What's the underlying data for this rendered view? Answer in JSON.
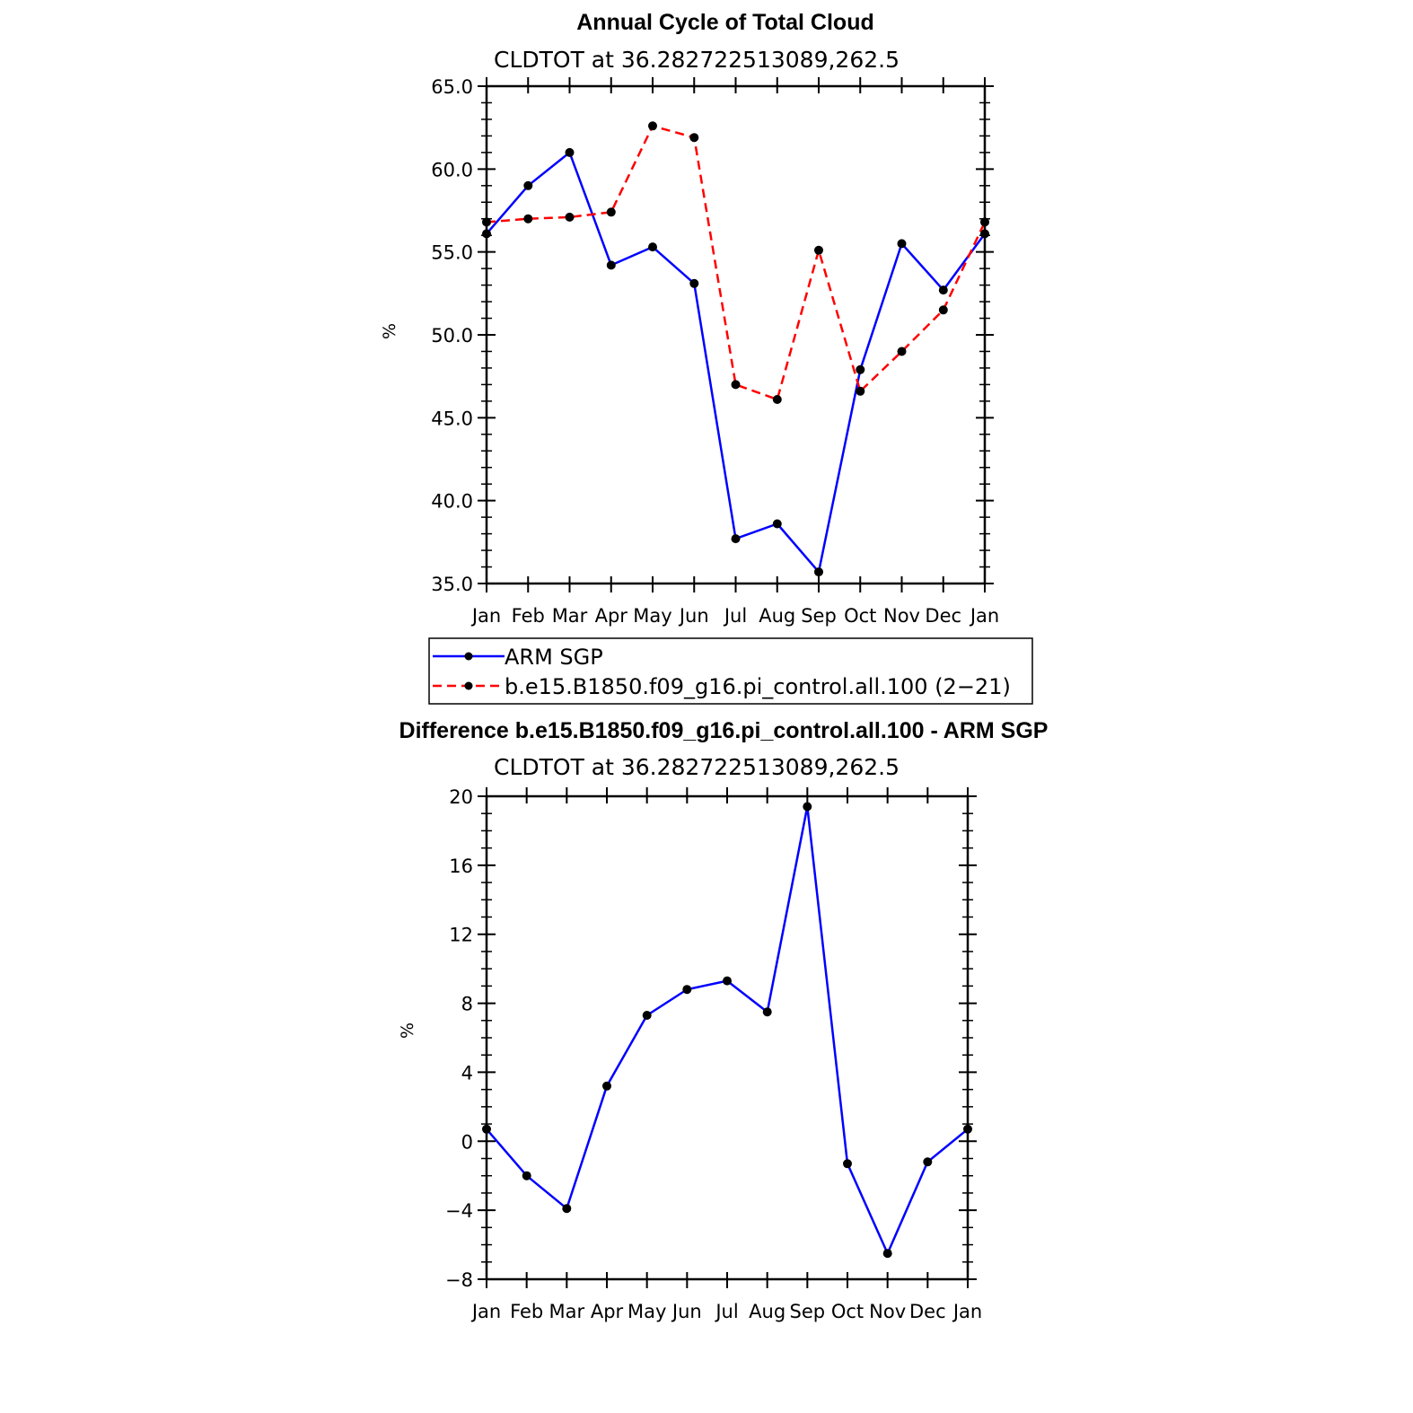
{
  "chart_data": [
    {
      "type": "line",
      "title": "Annual Cycle of Total Cloud",
      "subtitle": "CLDTOT at 36.282722513089,262.5",
      "xlabel": "",
      "ylabel": "%",
      "categories": [
        "Jan",
        "Feb",
        "Mar",
        "Apr",
        "May",
        "Jun",
        "Jul",
        "Aug",
        "Sep",
        "Oct",
        "Nov",
        "Dec",
        "Jan"
      ],
      "ylim": [
        35.0,
        65.0
      ],
      "yticks": [
        "35.0",
        "40.0",
        "45.0",
        "50.0",
        "55.0",
        "60.0",
        "65.0"
      ],
      "grid": false,
      "legend_position": "below",
      "series": [
        {
          "name": "ARM SGP",
          "color": "#0000ff",
          "dash": "solid",
          "values": [
            56.1,
            59.0,
            61.0,
            54.2,
            55.3,
            53.1,
            37.7,
            38.6,
            35.7,
            47.9,
            55.5,
            52.7,
            56.1
          ]
        },
        {
          "name": "b.e15.B1850.f09_g16.pi_control.all.100 (2−21)",
          "color": "#ff0000",
          "dash": "dashed",
          "values": [
            56.8,
            57.0,
            57.1,
            57.4,
            62.6,
            61.9,
            47.0,
            46.1,
            55.1,
            46.6,
            49.0,
            51.5,
            56.8
          ]
        }
      ]
    },
    {
      "type": "line",
      "title": "Difference b.e15.B1850.f09_g16.pi_control.all.100 - ARM SGP",
      "subtitle": "CLDTOT at 36.282722513089,262.5",
      "xlabel": "",
      "ylabel": "%",
      "categories": [
        "Jan",
        "Feb",
        "Mar",
        "Apr",
        "May",
        "Jun",
        "Jul",
        "Aug",
        "Sep",
        "Oct",
        "Nov",
        "Dec",
        "Jan"
      ],
      "ylim": [
        -8,
        20
      ],
      "yticks": [
        "−8",
        "−4",
        "0",
        "4",
        "8",
        "12",
        "16",
        "20"
      ],
      "grid": false,
      "series": [
        {
          "color": "#0000ff",
          "dash": "solid",
          "values": [
            0.7,
            -2.0,
            -3.9,
            3.2,
            7.3,
            8.8,
            9.3,
            7.5,
            19.4,
            -1.3,
            -6.5,
            -1.2,
            0.7
          ]
        }
      ]
    }
  ]
}
